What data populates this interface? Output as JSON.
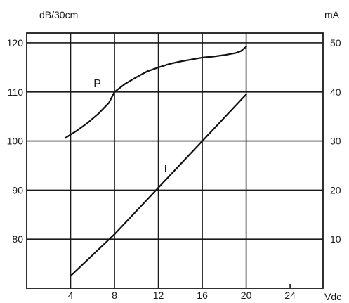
{
  "chart_data": {
    "type": "line",
    "x_axis": {
      "label": "Vdc",
      "ticks": [
        4,
        8,
        12,
        16,
        20,
        24
      ],
      "range": [
        0,
        27
      ]
    },
    "left_axis": {
      "label": "dB/30cm",
      "ticks": [
        80,
        90,
        100,
        110,
        120
      ],
      "range": [
        70,
        122
      ]
    },
    "right_axis": {
      "label": "mA",
      "ticks": [
        10,
        20,
        30,
        40,
        50
      ],
      "range": [
        0,
        52
      ]
    },
    "grid": true,
    "series": [
      {
        "name": "P",
        "axis": "left",
        "x": [
          3.5,
          4.5,
          5.5,
          6.5,
          7.5,
          8,
          9,
          10,
          11,
          12,
          13,
          14,
          15,
          16,
          17,
          18,
          19,
          19.5,
          20
        ],
        "y": [
          100.6,
          102.0,
          103.6,
          105.5,
          107.8,
          110.0,
          111.7,
          113.0,
          114.2,
          115.0,
          115.7,
          116.2,
          116.6,
          117.0,
          117.2,
          117.5,
          117.9,
          118.3,
          119.2
        ]
      },
      {
        "name": "I",
        "axis": "right",
        "x": [
          4,
          8,
          12,
          16,
          20
        ],
        "y": [
          2.5,
          11,
          20.5,
          30,
          39.5
        ]
      }
    ]
  }
}
